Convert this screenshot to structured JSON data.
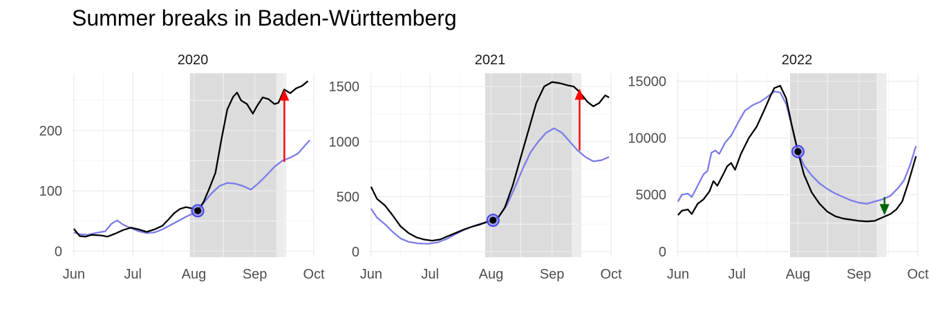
{
  "title": "Summer breaks in Baden-Württemberg",
  "colors": {
    "observed": "#000000",
    "expected": "#7b7bea",
    "marker_ring": "#4545e6",
    "break": "#dcdcdc",
    "break_tail": "#ececec",
    "grid_major": "#ebebeb",
    "grid_minor": "#f5f5f5",
    "up_arrow": "#ff0000",
    "down_arrow": "#006400"
  },
  "chart_data": [
    {
      "type": "line",
      "title": "2020",
      "x_ticks": [
        "Jun",
        "Jul",
        "Aug",
        "Sep",
        "Oct"
      ],
      "x_range": [
        "2020-05-31",
        "2020-10-01"
      ],
      "y_ticks": [
        0,
        100,
        200
      ],
      "y_range": [
        -10,
        295
      ],
      "break_shading": [
        "2020-07-30",
        "2020-09-12"
      ],
      "break_tail": [
        "2020-09-12",
        "2020-09-17"
      ],
      "marker": {
        "x": "2020-08-03",
        "y": 67
      },
      "arrow": {
        "x": "2020-09-16",
        "from": 148,
        "to": 268,
        "direction": "up"
      },
      "series": [
        {
          "role": "observed",
          "points": [
            [
              "2020-06-01",
              37
            ],
            [
              "2020-06-04",
              25
            ],
            [
              "2020-06-07",
              24
            ],
            [
              "2020-06-10",
              27
            ],
            [
              "2020-06-15",
              26
            ],
            [
              "2020-06-18",
              24
            ],
            [
              "2020-06-22",
              29
            ],
            [
              "2020-06-26",
              35
            ],
            [
              "2020-06-30",
              39
            ],
            [
              "2020-07-04",
              36
            ],
            [
              "2020-07-08",
              32
            ],
            [
              "2020-07-12",
              36
            ],
            [
              "2020-07-16",
              42
            ],
            [
              "2020-07-19",
              52
            ],
            [
              "2020-07-22",
              63
            ],
            [
              "2020-07-25",
              70
            ],
            [
              "2020-07-28",
              73
            ],
            [
              "2020-07-31",
              71
            ],
            [
              "2020-08-03",
              67
            ],
            [
              "2020-08-06",
              82
            ],
            [
              "2020-08-09",
              105
            ],
            [
              "2020-08-12",
              130
            ],
            [
              "2020-08-15",
              185
            ],
            [
              "2020-08-18",
              235
            ],
            [
              "2020-08-21",
              256
            ],
            [
              "2020-08-23",
              263
            ],
            [
              "2020-08-25",
              250
            ],
            [
              "2020-08-28",
              244
            ],
            [
              "2020-08-31",
              228
            ],
            [
              "2020-09-02",
              240
            ],
            [
              "2020-09-05",
              255
            ],
            [
              "2020-09-08",
              252
            ],
            [
              "2020-09-11",
              244
            ],
            [
              "2020-09-13",
              246
            ],
            [
              "2020-09-16",
              268
            ],
            [
              "2020-09-19",
              262
            ],
            [
              "2020-09-22",
              270
            ],
            [
              "2020-09-25",
              274
            ],
            [
              "2020-09-28",
              282
            ]
          ]
        },
        {
          "role": "expected",
          "points": [
            [
              "2020-06-01",
              31
            ],
            [
              "2020-06-04",
              28
            ],
            [
              "2020-06-08",
              27
            ],
            [
              "2020-06-12",
              30
            ],
            [
              "2020-06-17",
              33
            ],
            [
              "2020-06-20",
              45
            ],
            [
              "2020-06-23",
              51
            ],
            [
              "2020-06-26",
              44
            ],
            [
              "2020-06-30",
              38
            ],
            [
              "2020-07-04",
              33
            ],
            [
              "2020-07-08",
              30
            ],
            [
              "2020-07-12",
              31
            ],
            [
              "2020-07-16",
              36
            ],
            [
              "2020-07-20",
              43
            ],
            [
              "2020-07-24",
              50
            ],
            [
              "2020-07-28",
              57
            ],
            [
              "2020-08-01",
              63
            ],
            [
              "2020-08-03",
              67
            ],
            [
              "2020-08-06",
              80
            ],
            [
              "2020-08-10",
              96
            ],
            [
              "2020-08-14",
              108
            ],
            [
              "2020-08-18",
              113
            ],
            [
              "2020-08-22",
              112
            ],
            [
              "2020-08-26",
              108
            ],
            [
              "2020-08-30",
              102
            ],
            [
              "2020-09-03",
              113
            ],
            [
              "2020-09-07",
              126
            ],
            [
              "2020-09-11",
              140
            ],
            [
              "2020-09-15",
              150
            ],
            [
              "2020-09-19",
              155
            ],
            [
              "2020-09-23",
              162
            ],
            [
              "2020-09-27",
              177
            ],
            [
              "2020-09-29",
              184
            ]
          ]
        }
      ]
    },
    {
      "type": "line",
      "title": "2021",
      "x_ticks": [
        "Jun",
        "Jul",
        "Aug",
        "Sep",
        "Oct"
      ],
      "x_range": [
        "2021-05-31",
        "2021-10-01"
      ],
      "y_ticks": [
        0,
        500,
        1000,
        1500
      ],
      "y_range": [
        -50,
        1620
      ],
      "break_shading": [
        "2021-07-29",
        "2021-09-11"
      ],
      "break_tail": [
        "2021-09-11",
        "2021-09-16"
      ],
      "marker": {
        "x": "2021-08-02",
        "y": 285
      },
      "arrow": {
        "x": "2021-09-15",
        "from": 920,
        "to": 1480,
        "direction": "up"
      },
      "series": [
        {
          "role": "observed",
          "points": [
            [
              "2021-06-01",
              590
            ],
            [
              "2021-06-04",
              480
            ],
            [
              "2021-06-08",
              420
            ],
            [
              "2021-06-12",
              330
            ],
            [
              "2021-06-16",
              230
            ],
            [
              "2021-06-20",
              170
            ],
            [
              "2021-06-24",
              130
            ],
            [
              "2021-06-28",
              110
            ],
            [
              "2021-07-02",
              100
            ],
            [
              "2021-07-06",
              110
            ],
            [
              "2021-07-10",
              140
            ],
            [
              "2021-07-14",
              170
            ],
            [
              "2021-07-18",
              200
            ],
            [
              "2021-07-22",
              225
            ],
            [
              "2021-07-26",
              245
            ],
            [
              "2021-07-30",
              270
            ],
            [
              "2021-08-02",
              285
            ],
            [
              "2021-08-05",
              320
            ],
            [
              "2021-08-08",
              400
            ],
            [
              "2021-08-12",
              600
            ],
            [
              "2021-08-16",
              850
            ],
            [
              "2021-08-20",
              1100
            ],
            [
              "2021-08-24",
              1350
            ],
            [
              "2021-08-28",
              1500
            ],
            [
              "2021-09-01",
              1540
            ],
            [
              "2021-09-05",
              1530
            ],
            [
              "2021-09-09",
              1510
            ],
            [
              "2021-09-12",
              1500
            ],
            [
              "2021-09-15",
              1450
            ],
            [
              "2021-09-19",
              1360
            ],
            [
              "2021-09-22",
              1320
            ],
            [
              "2021-09-25",
              1350
            ],
            [
              "2021-09-28",
              1420
            ],
            [
              "2021-09-30",
              1400
            ]
          ]
        },
        {
          "role": "expected",
          "points": [
            [
              "2021-06-01",
              390
            ],
            [
              "2021-06-04",
              310
            ],
            [
              "2021-06-08",
              250
            ],
            [
              "2021-06-12",
              180
            ],
            [
              "2021-06-16",
              120
            ],
            [
              "2021-06-20",
              90
            ],
            [
              "2021-06-25",
              75
            ],
            [
              "2021-06-30",
              72
            ],
            [
              "2021-07-05",
              85
            ],
            [
              "2021-07-10",
              120
            ],
            [
              "2021-07-14",
              160
            ],
            [
              "2021-07-18",
              195
            ],
            [
              "2021-07-22",
              225
            ],
            [
              "2021-07-26",
              250
            ],
            [
              "2021-07-30",
              270
            ],
            [
              "2021-08-02",
              285
            ],
            [
              "2021-08-05",
              320
            ],
            [
              "2021-08-09",
              420
            ],
            [
              "2021-08-13",
              580
            ],
            [
              "2021-08-17",
              750
            ],
            [
              "2021-08-21",
              900
            ],
            [
              "2021-08-25",
              1000
            ],
            [
              "2021-08-29",
              1080
            ],
            [
              "2021-09-02",
              1120
            ],
            [
              "2021-09-06",
              1080
            ],
            [
              "2021-09-10",
              1000
            ],
            [
              "2021-09-14",
              920
            ],
            [
              "2021-09-18",
              860
            ],
            [
              "2021-09-22",
              820
            ],
            [
              "2021-09-26",
              830
            ],
            [
              "2021-09-30",
              860
            ]
          ]
        }
      ]
    },
    {
      "type": "line",
      "title": "2022",
      "x_ticks": [
        "Jun",
        "Jul",
        "Aug",
        "Sep",
        "Oct"
      ],
      "x_range": [
        "2022-05-31",
        "2022-10-01"
      ],
      "y_ticks": [
        0,
        5000,
        10000,
        15000
      ],
      "y_range": [
        -500,
        15700
      ],
      "break_shading": [
        "2022-07-28",
        "2022-09-10"
      ],
      "break_tail": [
        "2022-09-10",
        "2022-09-15"
      ],
      "marker": {
        "x": "2022-08-01",
        "y": 8800
      },
      "arrow": {
        "x": "2022-09-14",
        "from": 4800,
        "to": 3200,
        "direction": "down"
      },
      "series": [
        {
          "role": "observed",
          "points": [
            [
              "2022-06-01",
              3200
            ],
            [
              "2022-06-03",
              3600
            ],
            [
              "2022-06-06",
              3700
            ],
            [
              "2022-06-08",
              3300
            ],
            [
              "2022-06-11",
              4200
            ],
            [
              "2022-06-14",
              4600
            ],
            [
              "2022-06-17",
              5300
            ],
            [
              "2022-06-19",
              6200
            ],
            [
              "2022-06-21",
              5800
            ],
            [
              "2022-06-24",
              6800
            ],
            [
              "2022-06-26",
              7500
            ],
            [
              "2022-06-28",
              7800
            ],
            [
              "2022-06-30",
              7200
            ],
            [
              "2022-07-03",
              8600
            ],
            [
              "2022-07-07",
              10000
            ],
            [
              "2022-07-11",
              11000
            ],
            [
              "2022-07-15",
              12500
            ],
            [
              "2022-07-18",
              13700
            ],
            [
              "2022-07-20",
              14400
            ],
            [
              "2022-07-23",
              14600
            ],
            [
              "2022-07-26",
              13500
            ],
            [
              "2022-07-29",
              11000
            ],
            [
              "2022-08-01",
              8800
            ],
            [
              "2022-08-04",
              6800
            ],
            [
              "2022-08-08",
              5200
            ],
            [
              "2022-08-12",
              4200
            ],
            [
              "2022-08-16",
              3500
            ],
            [
              "2022-08-20",
              3100
            ],
            [
              "2022-08-24",
              2900
            ],
            [
              "2022-08-28",
              2800
            ],
            [
              "2022-09-01",
              2700
            ],
            [
              "2022-09-05",
              2650
            ],
            [
              "2022-09-09",
              2700
            ],
            [
              "2022-09-13",
              3000
            ],
            [
              "2022-09-17",
              3300
            ],
            [
              "2022-09-20",
              3700
            ],
            [
              "2022-09-23",
              4400
            ],
            [
              "2022-09-26",
              6000
            ],
            [
              "2022-09-30",
              8400
            ]
          ]
        },
        {
          "role": "expected",
          "points": [
            [
              "2022-06-01",
              4400
            ],
            [
              "2022-06-03",
              5000
            ],
            [
              "2022-06-06",
              5100
            ],
            [
              "2022-06-08",
              4800
            ],
            [
              "2022-06-11",
              5800
            ],
            [
              "2022-06-14",
              6800
            ],
            [
              "2022-06-16",
              7100
            ],
            [
              "2022-06-18",
              8700
            ],
            [
              "2022-06-20",
              8900
            ],
            [
              "2022-06-22",
              8600
            ],
            [
              "2022-06-25",
              9600
            ],
            [
              "2022-06-28",
              10200
            ],
            [
              "2022-07-02",
              11500
            ],
            [
              "2022-07-05",
              12400
            ],
            [
              "2022-07-09",
              12900
            ],
            [
              "2022-07-13",
              13200
            ],
            [
              "2022-07-17",
              13700
            ],
            [
              "2022-07-20",
              14100
            ],
            [
              "2022-07-23",
              14000
            ],
            [
              "2022-07-26",
              13000
            ],
            [
              "2022-07-29",
              11000
            ],
            [
              "2022-08-01",
              8800
            ],
            [
              "2022-08-04",
              7600
            ],
            [
              "2022-08-08",
              6700
            ],
            [
              "2022-08-12",
              6000
            ],
            [
              "2022-08-16",
              5500
            ],
            [
              "2022-08-20",
              5100
            ],
            [
              "2022-08-24",
              4800
            ],
            [
              "2022-08-28",
              4500
            ],
            [
              "2022-09-01",
              4300
            ],
            [
              "2022-09-05",
              4200
            ],
            [
              "2022-09-09",
              4400
            ],
            [
              "2022-09-13",
              4600
            ],
            [
              "2022-09-17",
              4900
            ],
            [
              "2022-09-21",
              5600
            ],
            [
              "2022-09-24",
              6300
            ],
            [
              "2022-09-27",
              7600
            ],
            [
              "2022-09-30",
              9300
            ]
          ]
        }
      ]
    }
  ]
}
